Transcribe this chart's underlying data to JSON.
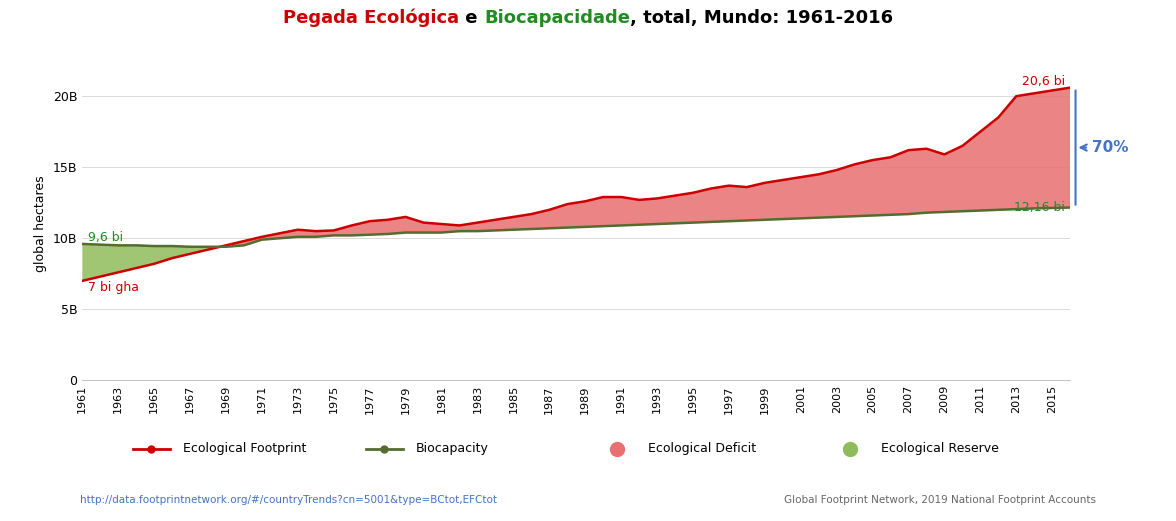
{
  "years": [
    1961,
    1962,
    1963,
    1964,
    1965,
    1966,
    1967,
    1968,
    1969,
    1970,
    1971,
    1972,
    1973,
    1974,
    1975,
    1976,
    1977,
    1978,
    1979,
    1980,
    1981,
    1982,
    1983,
    1984,
    1985,
    1986,
    1987,
    1988,
    1989,
    1990,
    1991,
    1992,
    1993,
    1994,
    1995,
    1996,
    1997,
    1998,
    1999,
    2000,
    2001,
    2002,
    2003,
    2004,
    2005,
    2006,
    2007,
    2008,
    2009,
    2010,
    2011,
    2012,
    2013,
    2014,
    2015,
    2016
  ],
  "ecological_footprint": [
    7.0,
    7.3,
    7.6,
    7.9,
    8.2,
    8.6,
    8.9,
    9.2,
    9.5,
    9.8,
    10.1,
    10.35,
    10.6,
    10.5,
    10.55,
    10.9,
    11.2,
    11.3,
    11.5,
    11.1,
    11.0,
    10.9,
    11.1,
    11.3,
    11.5,
    11.7,
    12.0,
    12.4,
    12.6,
    12.9,
    12.9,
    12.7,
    12.8,
    13.0,
    13.2,
    13.5,
    13.7,
    13.6,
    13.9,
    14.1,
    14.3,
    14.5,
    14.8,
    15.2,
    15.5,
    15.7,
    16.2,
    16.3,
    15.9,
    16.5,
    17.5,
    18.5,
    20.0,
    20.2,
    20.4,
    20.6
  ],
  "biocapacity": [
    9.6,
    9.55,
    9.5,
    9.5,
    9.45,
    9.45,
    9.4,
    9.4,
    9.4,
    9.5,
    9.9,
    10.0,
    10.1,
    10.1,
    10.2,
    10.2,
    10.25,
    10.3,
    10.4,
    10.4,
    10.4,
    10.5,
    10.5,
    10.55,
    10.6,
    10.65,
    10.7,
    10.75,
    10.8,
    10.85,
    10.9,
    10.95,
    11.0,
    11.05,
    11.1,
    11.15,
    11.2,
    11.25,
    11.3,
    11.35,
    11.4,
    11.45,
    11.5,
    11.55,
    11.6,
    11.65,
    11.7,
    11.8,
    11.85,
    11.9,
    11.95,
    12.0,
    12.05,
    12.1,
    12.13,
    12.16
  ],
  "ylabel": "global hectares",
  "ytick_labels": [
    "0",
    "5B",
    "10B",
    "15B",
    "20B"
  ],
  "ytick_values": [
    0,
    5,
    10,
    15,
    20
  ],
  "ylim": [
    0,
    22
  ],
  "ef_line_color": "#cc0000",
  "bio_line_color": "#556B2F",
  "deficit_fill_color": "#e87070",
  "reserve_fill_color": "#8fbc5a",
  "ann_7bi_color": "#cc0000",
  "ann_96bi_color": "#228B22",
  "ann_1216bi_color": "#228B22",
  "ann_206bi_color": "#cc0000",
  "ann_70pct_color": "#4472c4",
  "url_text": "http://data.footprintnetwork.org/#/countryTrends?cn=5001&type=BCtot,EFCtot",
  "source_text": "Global Footprint Network, 2019 National Footprint Accounts",
  "title_part1": "Pegada Ecológica",
  "title_part1_color": "#cc0000",
  "title_part2": " e ",
  "title_part2_color": "#000000",
  "title_part3": "Biocapacidade",
  "title_part3_color": "#228B22",
  "title_part4": ", total, Mundo: 1961-2016",
  "title_part4_color": "#000000",
  "background_color": "#ffffff",
  "grid_color": "#cccccc"
}
